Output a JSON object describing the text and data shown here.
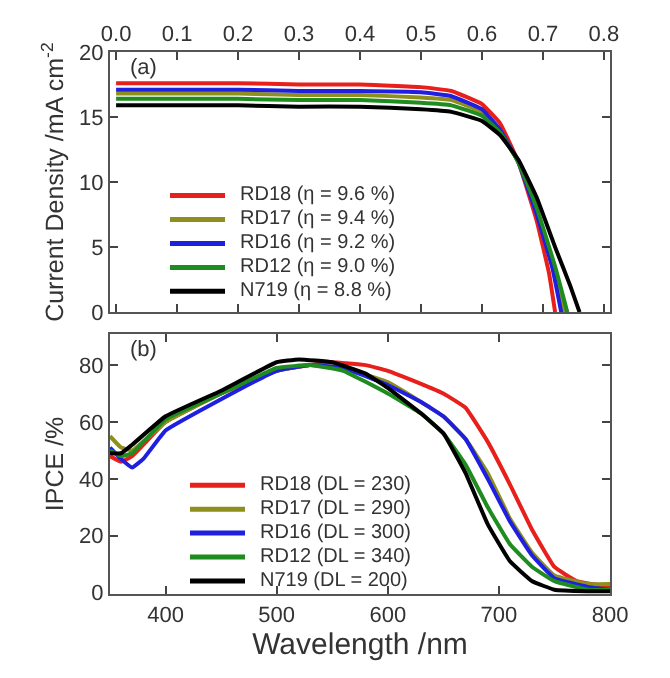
{
  "chart_data": [
    {
      "type": "line",
      "ylabel": "Current Density /mA cm$^{-2}$",
      "annotations": [
        "(a)"
      ],
      "xlim": [
        -0.01,
        0.81
      ],
      "xticks": [
        {
          "value": 0,
          "label": "0.0"
        },
        0.1,
        0.2,
        0.3,
        0.4,
        0.5,
        0.6,
        0.7,
        0.8
      ],
      "ylim": [
        0,
        20
      ],
      "yticks": [
        0,
        5,
        10,
        15,
        20
      ],
      "legend": "bottom left",
      "marker": "none",
      "line_style": "solid",
      "series": [
        {
          "name": "RD18 (η = 9.6 %)",
          "color": "#e8201c",
          "x": [
            0,
            0.1,
            0.2,
            0.3,
            0.4,
            0.5,
            0.55,
            0.6,
            0.63,
            0.66,
            0.69,
            0.71,
            0.72
          ],
          "values": [
            17.6,
            17.6,
            17.6,
            17.5,
            17.5,
            17.3,
            17.0,
            16.0,
            14.5,
            11.5,
            7,
            3,
            0
          ]
        },
        {
          "name": "RD17 (η = 9.4 %)",
          "color": "#8f8f1e",
          "x": [
            0,
            0.1,
            0.2,
            0.3,
            0.4,
            0.5,
            0.55,
            0.6,
            0.63,
            0.66,
            0.69,
            0.715,
            0.735
          ],
          "values": [
            16.8,
            16.8,
            16.8,
            16.7,
            16.7,
            16.5,
            16.3,
            15.4,
            13.9,
            11.5,
            7.7,
            3.6,
            0
          ]
        },
        {
          "name": "RD16 (η = 9.2 %)",
          "color": "#1f1fe0",
          "x": [
            0,
            0.1,
            0.2,
            0.3,
            0.4,
            0.5,
            0.55,
            0.6,
            0.63,
            0.66,
            0.69,
            0.715,
            0.73
          ],
          "values": [
            17.1,
            17.1,
            17.1,
            17.0,
            17.0,
            16.9,
            16.6,
            15.6,
            14.0,
            11.5,
            7.5,
            3.5,
            0
          ]
        },
        {
          "name": "RD12 (η = 9.0 %)",
          "color": "#1e8c1e",
          "x": [
            0,
            0.1,
            0.2,
            0.3,
            0.4,
            0.5,
            0.55,
            0.6,
            0.63,
            0.66,
            0.69,
            0.72,
            0.74
          ],
          "values": [
            16.4,
            16.4,
            16.4,
            16.3,
            16.3,
            16.1,
            15.9,
            15.1,
            13.8,
            11.5,
            8,
            3.5,
            0
          ]
        },
        {
          "name": "N719 (η = 8.8 %)",
          "color": "#000000",
          "x": [
            0,
            0.1,
            0.2,
            0.3,
            0.4,
            0.5,
            0.55,
            0.6,
            0.63,
            0.66,
            0.69,
            0.72,
            0.745,
            0.76
          ],
          "values": [
            15.9,
            15.9,
            15.9,
            15.8,
            15.8,
            15.6,
            15.4,
            14.7,
            13.6,
            11.7,
            8.8,
            5,
            2,
            0
          ]
        }
      ]
    },
    {
      "type": "line",
      "xlabel": "Wavelength /nm",
      "ylabel": "IPCE /%",
      "annotations": [
        "(b)"
      ],
      "xlim": [
        350,
        800
      ],
      "xticks": [
        400,
        500,
        600,
        700,
        800
      ],
      "ylim": [
        -0.5,
        91
      ],
      "yticks": [
        0,
        20,
        40,
        60,
        80
      ],
      "legend": "bottom left",
      "marker": "none",
      "line_style": "solid",
      "series": [
        {
          "name": "RD18 (DL = 230)",
          "color": "#e8201c",
          "x": [
            350,
            360,
            370,
            400,
            450,
            500,
            530,
            550,
            580,
            600,
            620,
            650,
            670,
            690,
            710,
            730,
            750,
            770,
            800
          ],
          "values": [
            48,
            46,
            48,
            60,
            70,
            78,
            80,
            81,
            80,
            78,
            75,
            70,
            65,
            53,
            38,
            22,
            9,
            4,
            2
          ]
        },
        {
          "name": "RD17 (DL = 290)",
          "color": "#8f8f1e",
          "x": [
            350,
            360,
            370,
            400,
            450,
            500,
            530,
            560,
            600,
            630,
            650,
            670,
            690,
            710,
            730,
            750,
            780,
            800
          ],
          "values": [
            55,
            51,
            50,
            60,
            70,
            78,
            80,
            79,
            74,
            67,
            62,
            54,
            42,
            26,
            14,
            6,
            3,
            3
          ]
        },
        {
          "name": "RD16 (DL = 300)",
          "color": "#1f1fe0",
          "x": [
            350,
            360,
            370,
            380,
            400,
            450,
            500,
            530,
            560,
            600,
            630,
            650,
            670,
            690,
            710,
            730,
            750,
            780,
            800
          ],
          "values": [
            51,
            47,
            44,
            47,
            57,
            68,
            78,
            80,
            79,
            73,
            67,
            62,
            54,
            40,
            25,
            13,
            5,
            2,
            1
          ]
        },
        {
          "name": "RD12 (DL = 340)",
          "color": "#1e8c1e",
          "x": [
            350,
            360,
            370,
            400,
            450,
            500,
            530,
            560,
            600,
            630,
            650,
            670,
            690,
            710,
            730,
            750,
            780,
            800
          ],
          "values": [
            50,
            48,
            49,
            61,
            70,
            79,
            80,
            78,
            70,
            63,
            56,
            45,
            30,
            17,
            9,
            4,
            1,
            1
          ]
        },
        {
          "name": "N719 (DL = 200)",
          "color": "#000000",
          "x": [
            350,
            360,
            370,
            400,
            450,
            500,
            520,
            550,
            580,
            600,
            630,
            650,
            670,
            690,
            710,
            730,
            750,
            780,
            800
          ],
          "values": [
            49,
            49,
            52,
            62,
            71,
            81,
            82,
            81,
            77,
            72,
            63,
            56,
            42,
            24,
            11,
            4,
            1,
            0.5,
            0.5
          ]
        }
      ]
    }
  ]
}
